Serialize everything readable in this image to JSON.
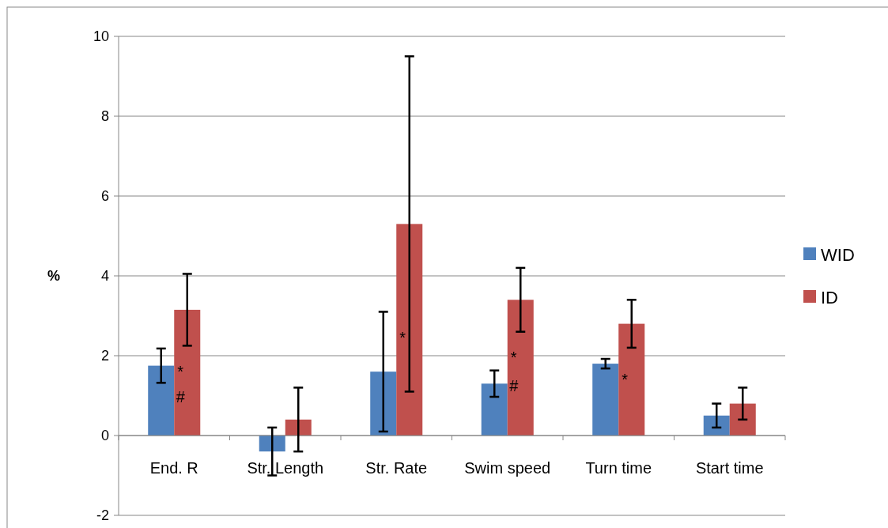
{
  "chart_data": {
    "type": "bar",
    "ylabel": "%",
    "categories": [
      "End. R",
      "Str. Length",
      "Str. Rate",
      "Swim speed",
      "Turn time",
      "Start time"
    ],
    "series": [
      {
        "name": "WID",
        "color": "#4f81bd",
        "values": [
          1.75,
          -0.4,
          1.6,
          1.3,
          1.8,
          0.5
        ],
        "errors": [
          0.43,
          0.6,
          1.5,
          0.33,
          0.12,
          0.3
        ]
      },
      {
        "name": "ID",
        "color": "#c0504d",
        "values": [
          3.15,
          0.4,
          5.3,
          3.4,
          2.8,
          0.8
        ],
        "errors": [
          0.9,
          0.8,
          [
            1.1,
            9.5
          ],
          0.8,
          0.6,
          0.4
        ]
      }
    ],
    "ylim": [
      -2,
      10
    ],
    "yticks": [
      -2,
      0,
      2,
      4,
      6,
      8,
      10
    ],
    "grid": "y",
    "legend": "right",
    "annotations": [
      {
        "text": "*",
        "x": "End. R",
        "y": 1.6
      },
      {
        "text": "#",
        "x": "End. R",
        "y": 0.98
      },
      {
        "text": "*",
        "x": "Str. Rate",
        "y": 2.45
      },
      {
        "text": "*",
        "x": "Swim speed",
        "y": 1.97
      },
      {
        "text": "#",
        "x": "Swim speed",
        "y": 1.25
      },
      {
        "text": "*",
        "x": "Turn time",
        "y": 1.4
      }
    ]
  }
}
